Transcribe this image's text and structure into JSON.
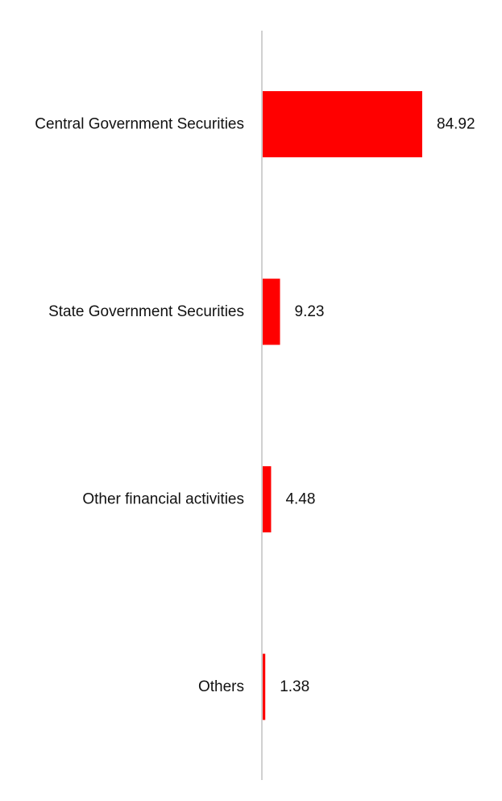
{
  "chart_data": {
    "type": "bar",
    "orientation": "horizontal",
    "categories": [
      "Central Government Securities",
      "State Government Securities",
      "Other financial activities",
      "Others"
    ],
    "values": [
      84.92,
      9.23,
      4.48,
      1.38
    ],
    "data_labels": [
      "84.92",
      "9.23",
      "4.48",
      "1.38"
    ],
    "title": "",
    "xlabel": "",
    "ylabel": "",
    "xlim": [
      0,
      100
    ],
    "grid": false,
    "legend": "none",
    "colors": {
      "bar": "#ff0000",
      "axis": "#d0d0d0",
      "text": "#111111"
    }
  }
}
